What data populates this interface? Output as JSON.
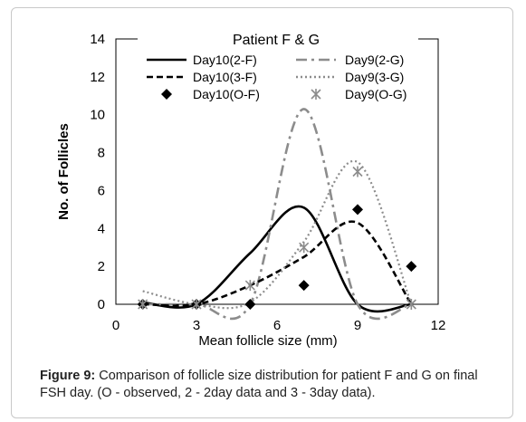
{
  "chart_data": {
    "type": "line",
    "title": "Patient F & G",
    "xlabel": "Mean follicle size (mm)",
    "ylabel": "No. of Follicles",
    "xlim": [
      0,
      12
    ],
    "ylim": [
      0,
      14
    ],
    "xticks": [
      "0",
      "3",
      "6",
      "9",
      "12"
    ],
    "yticks": [
      "0",
      "2",
      "4",
      "6",
      "8",
      "10",
      "12",
      "14"
    ],
    "legend_position": "top-center",
    "series": [
      {
        "name": "Day10(2-F)",
        "style": "solid",
        "color": "#000000",
        "x": [
          1,
          3,
          5,
          7,
          9,
          11
        ],
        "y": [
          0.1,
          0,
          2.7,
          5.1,
          0,
          0
        ]
      },
      {
        "name": "Day9(2-G)",
        "style": "dashdot",
        "color": "#8c8c8c",
        "x": [
          1,
          3,
          5,
          7,
          9,
          11
        ],
        "y": [
          0,
          0,
          0,
          10.3,
          0,
          0
        ]
      },
      {
        "name": "Day10(3-F)",
        "style": "dashed",
        "color": "#000000",
        "x": [
          1,
          3,
          5,
          7,
          9,
          11
        ],
        "y": [
          0,
          0,
          1,
          2.5,
          4.3,
          0
        ]
      },
      {
        "name": "Day9(3-G)",
        "style": "dotted",
        "color": "#8c8c8c",
        "x": [
          1,
          3,
          5,
          7,
          9,
          11
        ],
        "y": [
          0.7,
          0,
          0.1,
          3.3,
          7.5,
          0
        ]
      },
      {
        "name": "Day10(O-F)",
        "style": "diamond",
        "color": "#000000",
        "x": [
          1,
          3,
          5,
          7,
          9,
          11
        ],
        "y": [
          0,
          0,
          0,
          1,
          5,
          2
        ]
      },
      {
        "name": "Day9(O-G)",
        "style": "asterisk",
        "color": "#8c8c8c",
        "x": [
          1,
          3,
          5,
          7,
          9,
          11
        ],
        "y": [
          0,
          0,
          1,
          3,
          7,
          0
        ]
      }
    ]
  },
  "caption": {
    "label": "Figure 9:",
    "text": " Comparison of follicle size distribution for patient F and G on final FSH day. (O - observed, 2 - 2day data and 3 - 3day data)."
  }
}
